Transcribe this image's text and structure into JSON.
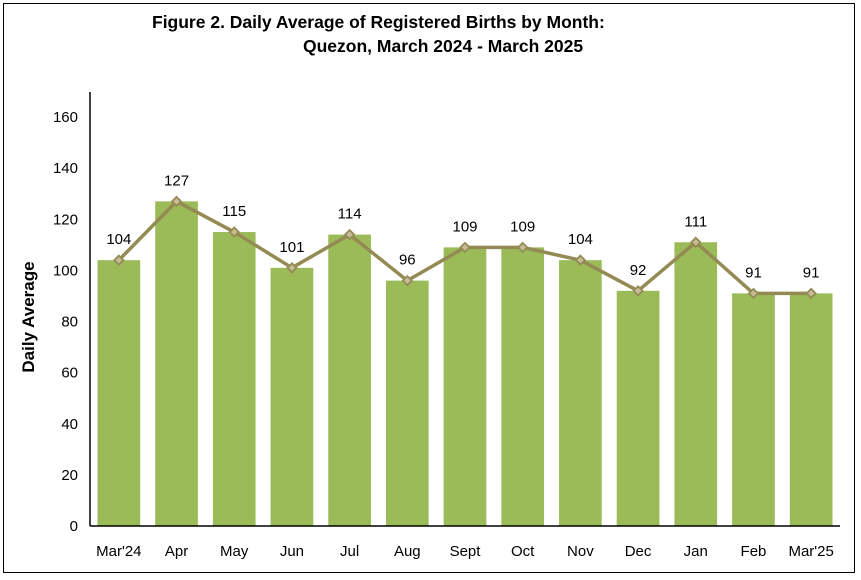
{
  "chart_data": {
    "type": "bar",
    "title": "Figure 2. Daily Average of Registered Births by Month:",
    "subtitle": "Quezon, March 2024 - March 2025",
    "xlabel": "",
    "ylabel": "Daily Average",
    "ylim": [
      0,
      160
    ],
    "yticks": [
      0,
      20,
      40,
      60,
      80,
      100,
      120,
      140,
      160
    ],
    "grid": false,
    "categories": [
      "Mar'24",
      "Apr",
      "May",
      "Jun",
      "Jul",
      "Aug",
      "Sept",
      "Oct",
      "Nov",
      "Dec",
      "Jan",
      "Feb",
      "Mar'25"
    ],
    "values": [
      104,
      127,
      115,
      101,
      114,
      96,
      109,
      109,
      104,
      92,
      111,
      91,
      91
    ],
    "overlay_line": true,
    "colors": {
      "bar": "#9bbb59",
      "line": "#948a54",
      "marker_fill": "#c4bd97"
    }
  }
}
